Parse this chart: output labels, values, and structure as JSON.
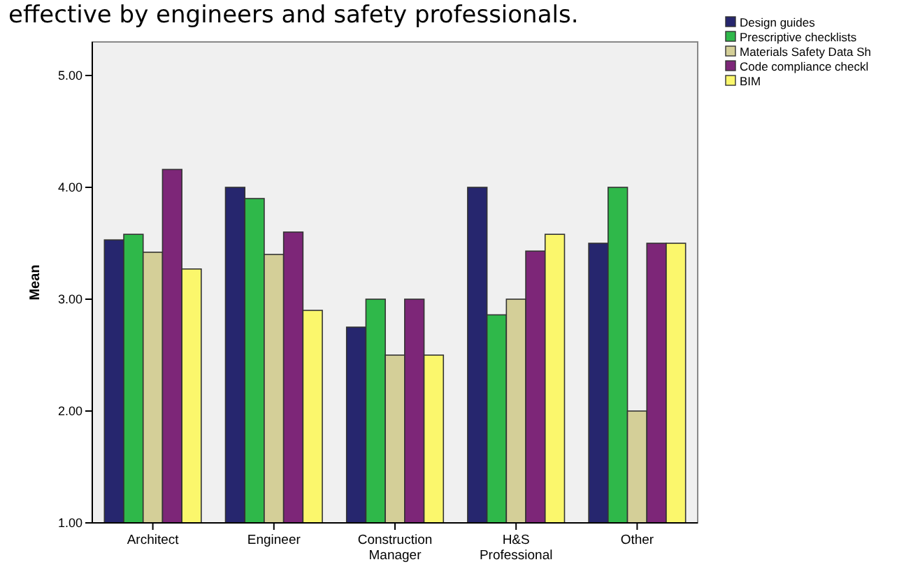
{
  "chart_data": {
    "type": "bar",
    "ylabel": "Mean",
    "annotations": [
      "effective by engineers and safety professionals."
    ],
    "categories": [
      "Architect",
      "Engineer",
      "Construction\nManager",
      "H&S\nProfessional",
      "Other"
    ],
    "series": [
      {
        "name": "Design guides",
        "color": "#26266e",
        "values": [
          3.53,
          4.0,
          2.75,
          4.0,
          3.5
        ]
      },
      {
        "name": "Prescriptive checklists",
        "color": "#2fb84a",
        "values": [
          3.58,
          3.9,
          3.0,
          2.86,
          4.0
        ]
      },
      {
        "name": "Materials Safety Data Sh",
        "color": "#d4cf98",
        "values": [
          3.42,
          3.4,
          2.5,
          3.0,
          2.0
        ]
      },
      {
        "name": "Code compliance checkl",
        "color": "#7d2678",
        "values": [
          4.16,
          3.6,
          3.0,
          3.43,
          3.5
        ]
      },
      {
        "name": "BIM",
        "color": "#fbf76c",
        "values": [
          3.27,
          2.9,
          2.5,
          3.58,
          3.5
        ]
      }
    ],
    "ylim": [
      1,
      5.3
    ],
    "yticks": [
      {
        "value": 1,
        "label": "1.00"
      },
      {
        "value": 2,
        "label": "2.00"
      },
      {
        "value": 3,
        "label": "3.00"
      },
      {
        "value": 4,
        "label": "4.00"
      },
      {
        "value": 5,
        "label": "5.00"
      }
    ],
    "grid": false,
    "legend": "top right"
  }
}
